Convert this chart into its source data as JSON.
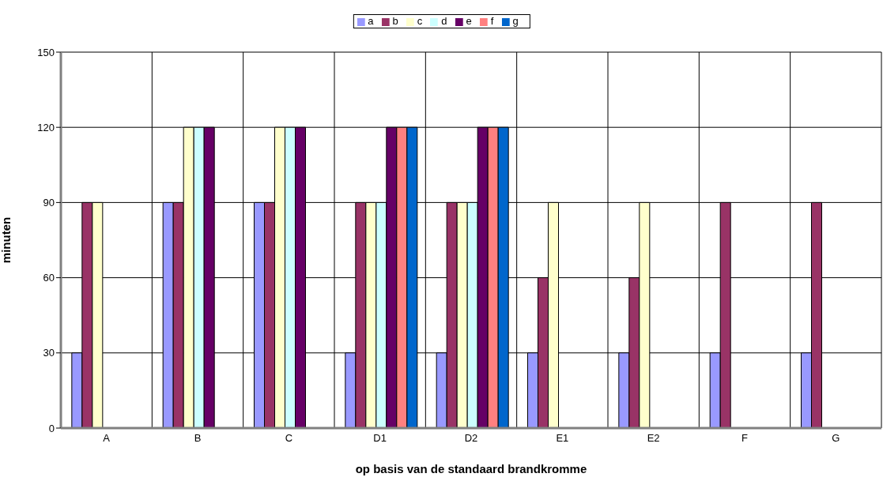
{
  "chart_data": {
    "type": "bar",
    "xlabel": "op basis van de standaard brandkromme",
    "ylabel": "minuten",
    "categories": [
      "A",
      "B",
      "C",
      "D1",
      "D2",
      "E1",
      "E2",
      "F",
      "G"
    ],
    "series": [
      {
        "name": "a",
        "color": "#9999ff",
        "values": [
          30,
          90,
          90,
          30,
          30,
          30,
          30,
          30,
          30
        ]
      },
      {
        "name": "b",
        "color": "#993366",
        "values": [
          90,
          90,
          90,
          90,
          90,
          60,
          60,
          90,
          90
        ]
      },
      {
        "name": "c",
        "color": "#ffffcc",
        "values": [
          90,
          120,
          120,
          90,
          90,
          90,
          90,
          null,
          null
        ]
      },
      {
        "name": "d",
        "color": "#ccffff",
        "values": [
          null,
          120,
          120,
          90,
          90,
          null,
          null,
          null,
          null
        ]
      },
      {
        "name": "e",
        "color": "#660066",
        "values": [
          null,
          120,
          120,
          120,
          120,
          null,
          null,
          null,
          null
        ]
      },
      {
        "name": "f",
        "color": "#ff8080",
        "values": [
          null,
          null,
          null,
          120,
          120,
          null,
          null,
          null,
          null
        ]
      },
      {
        "name": "g",
        "color": "#0066cc",
        "values": [
          null,
          null,
          null,
          120,
          120,
          null,
          null,
          null,
          null
        ]
      }
    ],
    "ylim": [
      0,
      150
    ],
    "yticks": [
      0,
      30,
      60,
      90,
      120,
      150
    ],
    "grid": true,
    "legend": "top"
  }
}
